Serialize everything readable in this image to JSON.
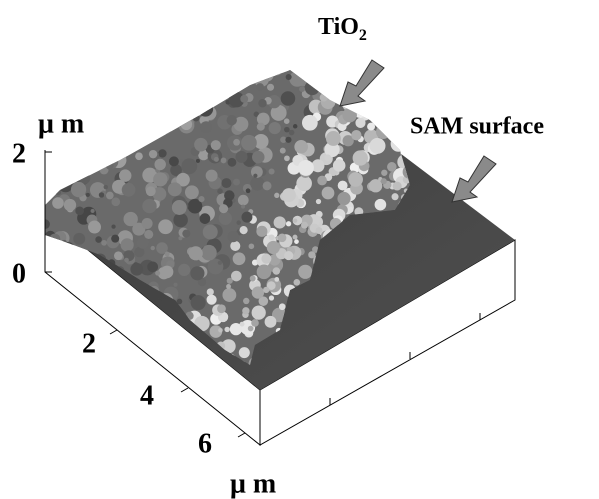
{
  "z_axis": {
    "unit": "μ m",
    "ticks": [
      "2",
      "0"
    ]
  },
  "x_axis": {
    "unit": "μ m",
    "ticks": [
      "2",
      "4",
      "6"
    ]
  },
  "annotations": {
    "tio2": {
      "text": "TiO",
      "subscript": "2"
    },
    "sam": {
      "text": "SAM surface"
    }
  }
}
